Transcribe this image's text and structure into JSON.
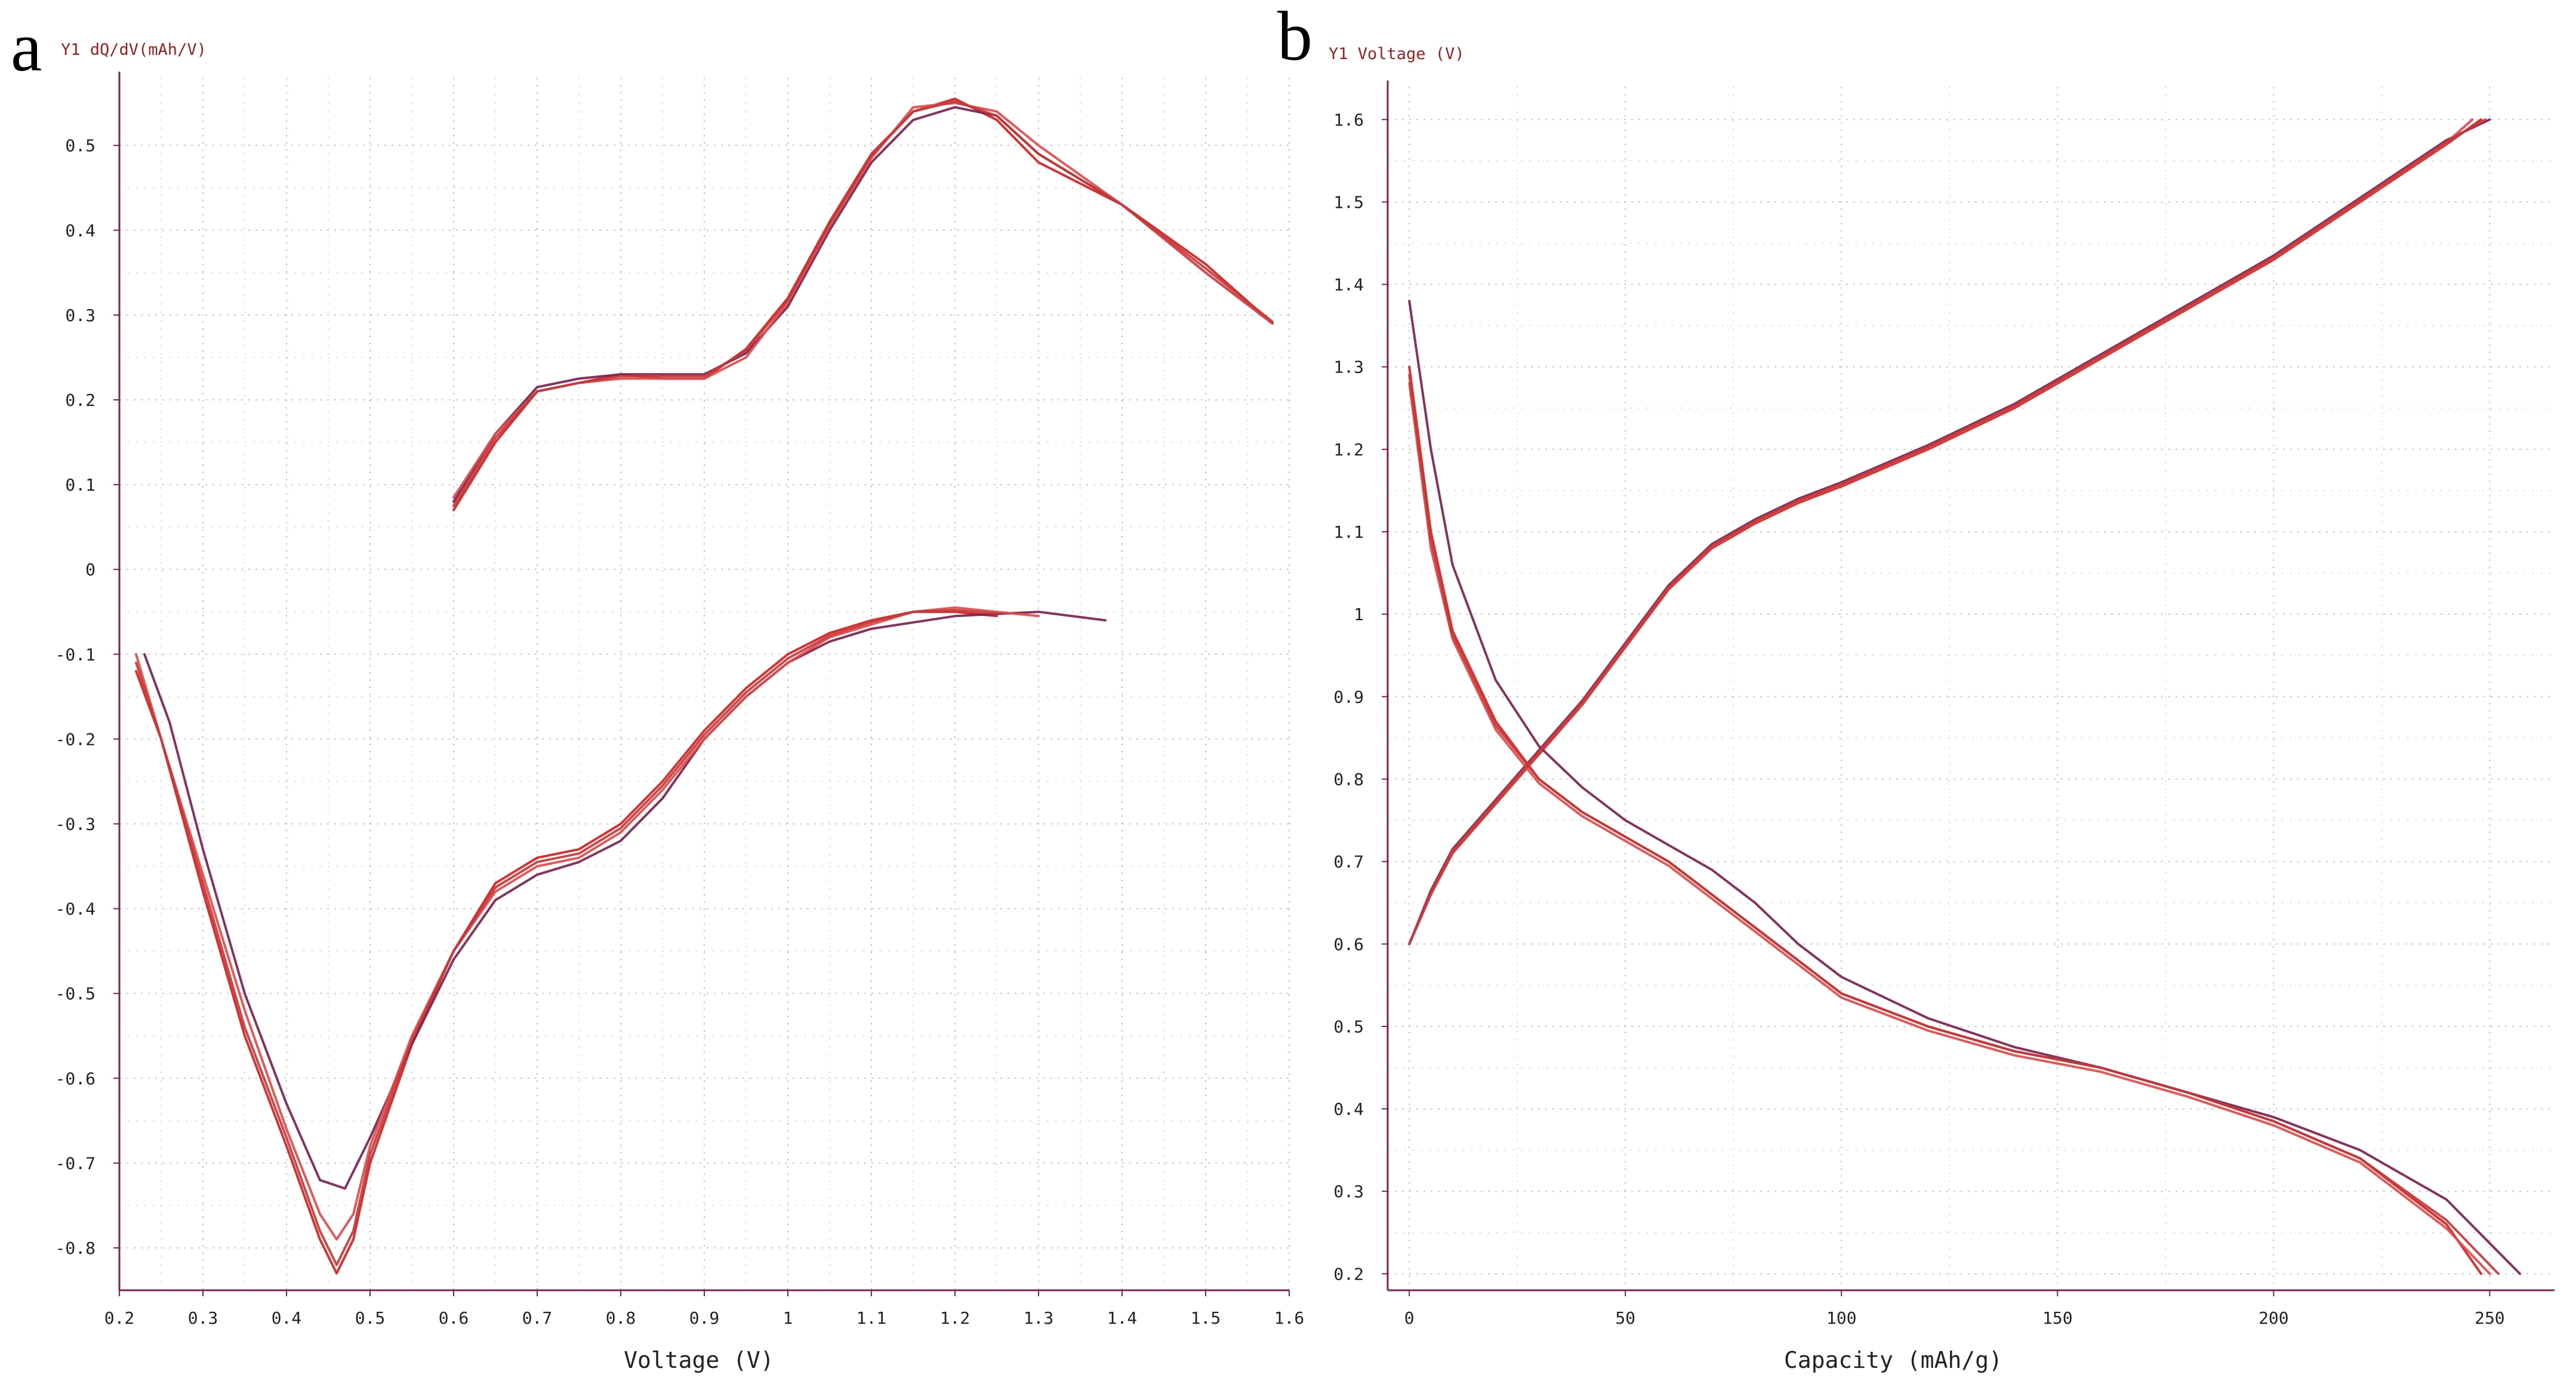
{
  "panels": {
    "a": {
      "letter": "a"
    },
    "b": {
      "letter": "b"
    }
  },
  "colors": {
    "axis": "#7b2250",
    "grid": "#c7c7c7",
    "series": [
      "#d81e1e",
      "#7b2250",
      "#e24a4a",
      "#c23a3a",
      "#f07b7b",
      "#8c1d2f"
    ]
  },
  "chart_data": [
    {
      "type": "line",
      "panel": "a",
      "ylabel": "Y1 dQ/dV(mAh/V)",
      "xlabel": "Voltage (V)",
      "xlim": [
        0.2,
        1.6
      ],
      "ylim": [
        -0.85,
        0.58
      ],
      "xticks": [
        0.2,
        0.3,
        0.4,
        0.5,
        0.6,
        0.7,
        0.8,
        0.9,
        1.0,
        1.1,
        1.2,
        1.3,
        1.4,
        1.5,
        1.6
      ],
      "xtick_labels": [
        "0.2",
        "0.3",
        "0.4",
        "0.5",
        "0.6",
        "0.7",
        "0.8",
        "0.9",
        "1",
        "1.1",
        "1.2",
        "1.3",
        "1.4",
        "1.5",
        "1.6"
      ],
      "yticks": [
        -0.8,
        -0.7,
        -0.6,
        -0.5,
        -0.4,
        -0.3,
        -0.2,
        -0.1,
        0,
        0.1,
        0.2,
        0.3,
        0.4,
        0.5
      ],
      "ytick_labels": [
        "-0.8",
        "-0.7",
        "-0.6",
        "-0.5",
        "-0.4",
        "-0.3",
        "-0.2",
        "-0.1",
        "0",
        "0.1",
        "0.2",
        "0.3",
        "0.4",
        "0.5"
      ],
      "grid": true,
      "legend": "none",
      "series": [
        {
          "charge": {
            "x": [
              0.6,
              0.65,
              0.7,
              0.75,
              0.8,
              0.85,
              0.9,
              0.95,
              1.0,
              1.05,
              1.1,
              1.15,
              1.2,
              1.25,
              1.3,
              1.4,
              1.5,
              1.58
            ],
            "y": [
              0.07,
              0.15,
              0.21,
              0.22,
              0.23,
              0.225,
              0.225,
              0.26,
              0.32,
              0.41,
              0.49,
              0.54,
              0.555,
              0.53,
              0.48,
              0.43,
              0.36,
              0.29
            ]
          },
          "discharge": {
            "x": [
              0.22,
              0.25,
              0.3,
              0.35,
              0.4,
              0.44,
              0.46,
              0.48,
              0.5,
              0.55,
              0.6,
              0.65,
              0.7,
              0.75,
              0.8,
              0.85,
              0.9,
              0.95,
              1.0,
              1.05,
              1.1,
              1.15,
              1.2,
              1.25
            ],
            "y": [
              -0.12,
              -0.2,
              -0.38,
              -0.55,
              -0.68,
              -0.79,
              -0.83,
              -0.79,
              -0.7,
              -0.56,
              -0.45,
              -0.37,
              -0.34,
              -0.33,
              -0.3,
              -0.25,
              -0.19,
              -0.14,
              -0.1,
              -0.075,
              -0.06,
              -0.05,
              -0.05,
              -0.055
            ]
          }
        },
        {
          "charge": {
            "x": [
              0.6,
              0.65,
              0.7,
              0.75,
              0.8,
              0.85,
              0.9,
              0.95,
              1.0,
              1.05,
              1.1,
              1.15,
              1.2,
              1.25,
              1.3,
              1.4,
              1.5,
              1.58
            ],
            "y": [
              0.08,
              0.16,
              0.215,
              0.225,
              0.23,
              0.23,
              0.23,
              0.255,
              0.31,
              0.4,
              0.48,
              0.53,
              0.545,
              0.535,
              0.49,
              0.43,
              0.35,
              0.29
            ]
          },
          "discharge": {
            "x": [
              0.23,
              0.26,
              0.3,
              0.35,
              0.4,
              0.44,
              0.47,
              0.5,
              0.55,
              0.6,
              0.65,
              0.7,
              0.75,
              0.8,
              0.85,
              0.9,
              0.95,
              1.0,
              1.05,
              1.1,
              1.2,
              1.3,
              1.38
            ],
            "y": [
              -0.1,
              -0.18,
              -0.33,
              -0.5,
              -0.63,
              -0.72,
              -0.73,
              -0.67,
              -0.56,
              -0.46,
              -0.39,
              -0.36,
              -0.345,
              -0.32,
              -0.27,
              -0.2,
              -0.15,
              -0.11,
              -0.085,
              -0.07,
              -0.055,
              -0.05,
              -0.06
            ]
          }
        },
        {
          "charge": {
            "x": [
              0.6,
              0.65,
              0.7,
              0.75,
              0.8,
              0.85,
              0.9,
              0.95,
              1.0,
              1.05,
              1.1,
              1.15,
              1.2,
              1.25,
              1.3,
              1.4,
              1.5,
              1.58
            ],
            "y": [
              0.085,
              0.16,
              0.21,
              0.22,
              0.225,
              0.225,
              0.225,
              0.25,
              0.315,
              0.405,
              0.485,
              0.545,
              0.55,
              0.54,
              0.5,
              0.43,
              0.35,
              0.29
            ]
          },
          "discharge": {
            "x": [
              0.22,
              0.25,
              0.3,
              0.35,
              0.4,
              0.44,
              0.46,
              0.48,
              0.5,
              0.55,
              0.6,
              0.65,
              0.7,
              0.75,
              0.8,
              0.85,
              0.9,
              0.95,
              1.0,
              1.05,
              1.1,
              1.15,
              1.2,
              1.25,
              1.3
            ],
            "y": [
              -0.1,
              -0.2,
              -0.36,
              -0.52,
              -0.66,
              -0.76,
              -0.79,
              -0.76,
              -0.68,
              -0.55,
              -0.45,
              -0.38,
              -0.35,
              -0.34,
              -0.31,
              -0.26,
              -0.2,
              -0.15,
              -0.11,
              -0.08,
              -0.065,
              -0.05,
              -0.045,
              -0.05,
              -0.055
            ]
          }
        },
        {
          "charge": {
            "x": [
              0.6,
              0.65,
              0.7,
              0.75,
              0.8,
              0.85,
              0.9,
              0.95,
              1.0,
              1.05,
              1.1,
              1.15,
              1.2,
              1.25,
              1.3,
              1.4,
              1.5,
              1.58
            ],
            "y": [
              0.075,
              0.155,
              0.21,
              0.22,
              0.228,
              0.228,
              0.228,
              0.258,
              0.318,
              0.408,
              0.488,
              0.54,
              0.552,
              0.535,
              0.49,
              0.43,
              0.355,
              0.292
            ]
          },
          "discharge": {
            "x": [
              0.22,
              0.25,
              0.3,
              0.35,
              0.4,
              0.44,
              0.46,
              0.48,
              0.5,
              0.55,
              0.6,
              0.65,
              0.7,
              0.75,
              0.8,
              0.85,
              0.9,
              0.95,
              1.0,
              1.05,
              1.1,
              1.15,
              1.2,
              1.25
            ],
            "y": [
              -0.11,
              -0.2,
              -0.37,
              -0.54,
              -0.67,
              -0.78,
              -0.82,
              -0.78,
              -0.69,
              -0.555,
              -0.45,
              -0.375,
              -0.345,
              -0.335,
              -0.305,
              -0.255,
              -0.195,
              -0.145,
              -0.105,
              -0.078,
              -0.062,
              -0.05,
              -0.048,
              -0.052
            ]
          }
        }
      ]
    },
    {
      "type": "line",
      "panel": "b",
      "ylabel": "Y1 Voltage (V)",
      "xlabel": "Capacity (mAh/g)",
      "xlim": [
        -5,
        265
      ],
      "ylim": [
        0.18,
        1.64
      ],
      "xticks": [
        0,
        50,
        100,
        150,
        200,
        250
      ],
      "xtick_labels": [
        "0",
        "50",
        "100",
        "150",
        "200",
        "250"
      ],
      "yticks": [
        0.2,
        0.3,
        0.4,
        0.5,
        0.6,
        0.7,
        0.8,
        0.9,
        1.0,
        1.1,
        1.2,
        1.3,
        1.4,
        1.5,
        1.6
      ],
      "ytick_labels": [
        "0.2",
        "0.3",
        "0.4",
        "0.5",
        "0.6",
        "0.7",
        "0.8",
        "0.9",
        "1",
        "1.1",
        "1.2",
        "1.3",
        "1.4",
        "1.5",
        "1.6"
      ],
      "grid": true,
      "legend": "none",
      "series": [
        {
          "charge": {
            "x": [
              0,
              5,
              10,
              20,
              30,
              40,
              50,
              60,
              70,
              80,
              90,
              100,
              120,
              140,
              160,
              180,
              200,
              220,
              240,
              248
            ],
            "y": [
              0.6,
              0.66,
              0.71,
              0.77,
              0.83,
              0.89,
              0.96,
              1.03,
              1.08,
              1.11,
              1.135,
              1.155,
              1.2,
              1.25,
              1.31,
              1.37,
              1.43,
              1.5,
              1.57,
              1.6
            ]
          },
          "discharge": {
            "x": [
              0,
              5,
              10,
              20,
              30,
              40,
              50,
              60,
              70,
              80,
              90,
              100,
              120,
              140,
              160,
              180,
              200,
              220,
              240,
              248
            ],
            "y": [
              1.3,
              1.1,
              0.98,
              0.87,
              0.8,
              0.76,
              0.73,
              0.7,
              0.66,
              0.62,
              0.58,
              0.54,
              0.5,
              0.47,
              0.45,
              0.42,
              0.385,
              0.34,
              0.26,
              0.2
            ]
          }
        },
        {
          "charge": {
            "x": [
              0,
              5,
              10,
              20,
              30,
              40,
              50,
              60,
              70,
              80,
              90,
              100,
              120,
              140,
              160,
              180,
              200,
              220,
              240,
              250
            ],
            "y": [
              0.6,
              0.665,
              0.715,
              0.775,
              0.835,
              0.895,
              0.965,
              1.035,
              1.085,
              1.115,
              1.14,
              1.16,
              1.205,
              1.255,
              1.315,
              1.375,
              1.435,
              1.505,
              1.575,
              1.6
            ]
          },
          "discharge": {
            "x": [
              0,
              5,
              10,
              20,
              30,
              40,
              50,
              60,
              70,
              80,
              90,
              100,
              120,
              140,
              160,
              180,
              200,
              220,
              240,
              257
            ],
            "y": [
              1.38,
              1.2,
              1.06,
              0.92,
              0.84,
              0.79,
              0.75,
              0.72,
              0.69,
              0.65,
              0.6,
              0.56,
              0.51,
              0.475,
              0.45,
              0.42,
              0.39,
              0.35,
              0.29,
              0.2
            ]
          }
        },
        {
          "charge": {
            "x": [
              0,
              5,
              10,
              20,
              30,
              40,
              50,
              60,
              70,
              80,
              90,
              100,
              120,
              140,
              160,
              180,
              200,
              220,
              240,
              246
            ],
            "y": [
              0.6,
              0.66,
              0.712,
              0.772,
              0.832,
              0.892,
              0.962,
              1.032,
              1.082,
              1.112,
              1.137,
              1.157,
              1.202,
              1.252,
              1.312,
              1.372,
              1.432,
              1.502,
              1.572,
              1.6
            ]
          },
          "discharge": {
            "x": [
              0,
              5,
              10,
              20,
              30,
              40,
              50,
              60,
              70,
              80,
              90,
              100,
              120,
              140,
              160,
              180,
              200,
              220,
              240,
              250
            ],
            "y": [
              1.28,
              1.08,
              0.97,
              0.86,
              0.795,
              0.755,
              0.725,
              0.695,
              0.655,
              0.615,
              0.575,
              0.535,
              0.495,
              0.465,
              0.445,
              0.415,
              0.38,
              0.335,
              0.255,
              0.2
            ]
          }
        },
        {
          "charge": {
            "x": [
              0,
              5,
              10,
              20,
              30,
              40,
              50,
              60,
              70,
              80,
              90,
              100,
              120,
              140,
              160,
              180,
              200,
              220,
              240,
              249
            ],
            "y": [
              0.6,
              0.662,
              0.713,
              0.773,
              0.833,
              0.893,
              0.963,
              1.033,
              1.083,
              1.113,
              1.138,
              1.158,
              1.203,
              1.253,
              1.313,
              1.373,
              1.433,
              1.503,
              1.573,
              1.6
            ]
          },
          "discharge": {
            "x": [
              0,
              5,
              10,
              20,
              30,
              40,
              50,
              60,
              70,
              80,
              90,
              100,
              120,
              140,
              160,
              180,
              200,
              220,
              240,
              252
            ],
            "y": [
              1.29,
              1.09,
              0.975,
              0.865,
              0.8,
              0.76,
              0.73,
              0.7,
              0.66,
              0.62,
              0.58,
              0.54,
              0.5,
              0.47,
              0.45,
              0.42,
              0.385,
              0.34,
              0.265,
              0.2
            ]
          }
        }
      ]
    }
  ]
}
